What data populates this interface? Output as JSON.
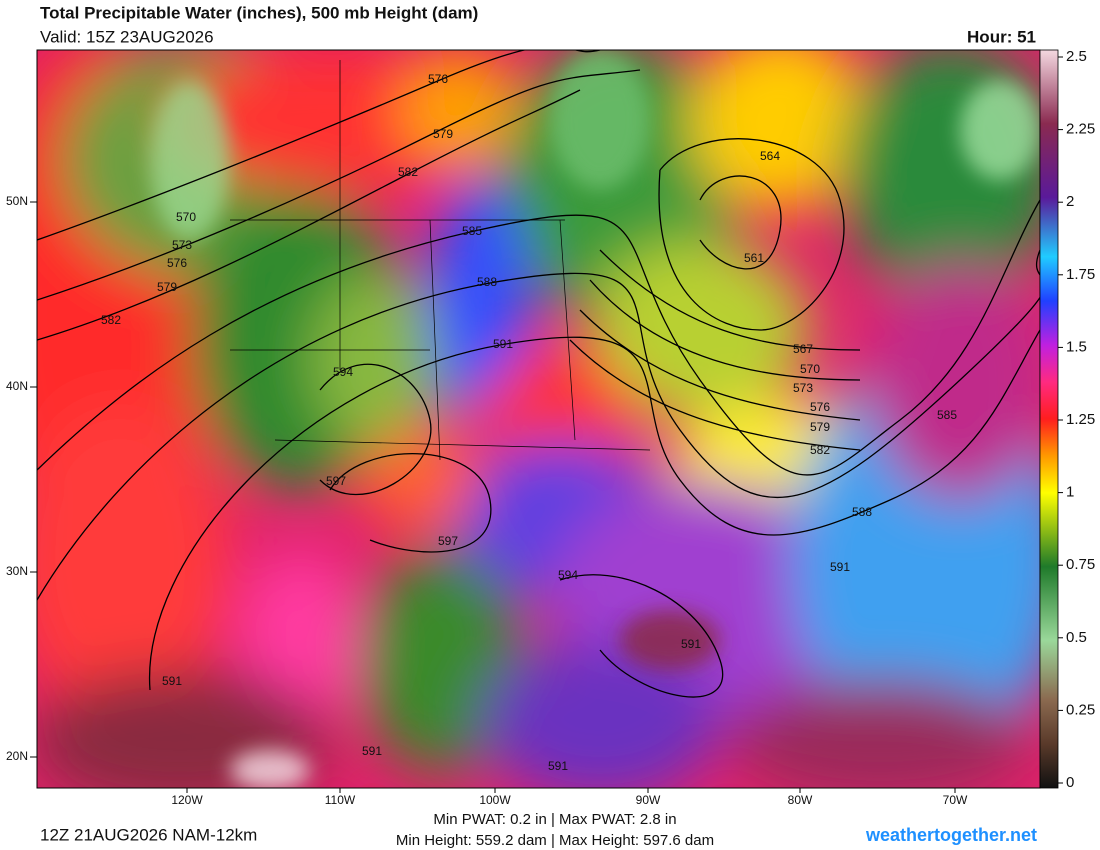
{
  "header": {
    "title": "Total Precipitable Water (inches), 500 mb Height (dam)",
    "valid": "Valid: 15Z 23AUG2026",
    "hour": "Hour: 51"
  },
  "map": {
    "lat_labels": [
      "50N",
      "40N",
      "30N",
      "20N"
    ],
    "lon_labels": [
      "120W",
      "110W",
      "100W",
      "90W",
      "80W",
      "70W"
    ],
    "contour_labels": [
      "576",
      "579",
      "582",
      "585",
      "588",
      "591",
      "594",
      "597",
      "597",
      "594",
      "591",
      "591",
      "591",
      "591",
      "570",
      "573",
      "576",
      "579",
      "582",
      "564",
      "561",
      "567",
      "570",
      "573",
      "576",
      "579",
      "582",
      "585",
      "588",
      "591"
    ]
  },
  "colorbar": {
    "ticks": [
      2.5,
      2.25,
      2,
      1.75,
      1.5,
      1.25,
      1,
      0.75,
      0.5,
      0.25,
      0
    ]
  },
  "footer": {
    "run": "12Z 21AUG2026 NAM-12km",
    "stats_pwat": "Min PWAT:   0.2 in | Max PWAT:   2.8 in",
    "stats_height": "Min Height: 559.2 dam | Max Height: 597.6 dam",
    "site": "weathertogether.net"
  }
}
